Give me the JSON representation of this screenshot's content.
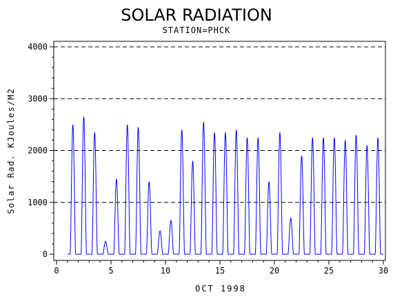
{
  "chart_data": {
    "type": "line",
    "title": "SOLAR RADIATION",
    "subtitle": "STATION=PHCK",
    "xlabel": "OCT 1998",
    "ylabel": "Solar Rad. KJoules/M2",
    "xlim": [
      0,
      30
    ],
    "ylim": [
      0,
      4000
    ],
    "xticks": [
      0,
      5,
      10,
      15,
      20,
      25,
      30
    ],
    "yticks": [
      0,
      1000,
      2000,
      3000,
      4000
    ],
    "ygrid": [
      1000,
      2000,
      3000,
      4000
    ],
    "line_color": "#0000ff",
    "daily_peaks": [
      {
        "day": 1,
        "peak": 2500
      },
      {
        "day": 2,
        "peak": 2650
      },
      {
        "day": 3,
        "peak": 2350
      },
      {
        "day": 4,
        "peak": 250
      },
      {
        "day": 5,
        "peak": 1450
      },
      {
        "day": 6,
        "peak": 2500
      },
      {
        "day": 7,
        "peak": 2450
      },
      {
        "day": 8,
        "peak": 1400
      },
      {
        "day": 9,
        "peak": 450
      },
      {
        "day": 10,
        "peak": 650
      },
      {
        "day": 11,
        "peak": 2400
      },
      {
        "day": 12,
        "peak": 1800
      },
      {
        "day": 13,
        "peak": 2550
      },
      {
        "day": 14,
        "peak": 2350
      },
      {
        "day": 15,
        "peak": 2350
      },
      {
        "day": 16,
        "peak": 2400
      },
      {
        "day": 17,
        "peak": 2250
      },
      {
        "day": 18,
        "peak": 2250
      },
      {
        "day": 19,
        "peak": 1400
      },
      {
        "day": 20,
        "peak": 2350
      },
      {
        "day": 21,
        "peak": 700
      },
      {
        "day": 22,
        "peak": 1900
      },
      {
        "day": 23,
        "peak": 2250
      },
      {
        "day": 24,
        "peak": 2250
      },
      {
        "day": 25,
        "peak": 2250
      },
      {
        "day": 26,
        "peak": 2200
      },
      {
        "day": 27,
        "peak": 2300
      },
      {
        "day": 28,
        "peak": 2100
      },
      {
        "day": 29,
        "peak": 2250
      }
    ]
  }
}
